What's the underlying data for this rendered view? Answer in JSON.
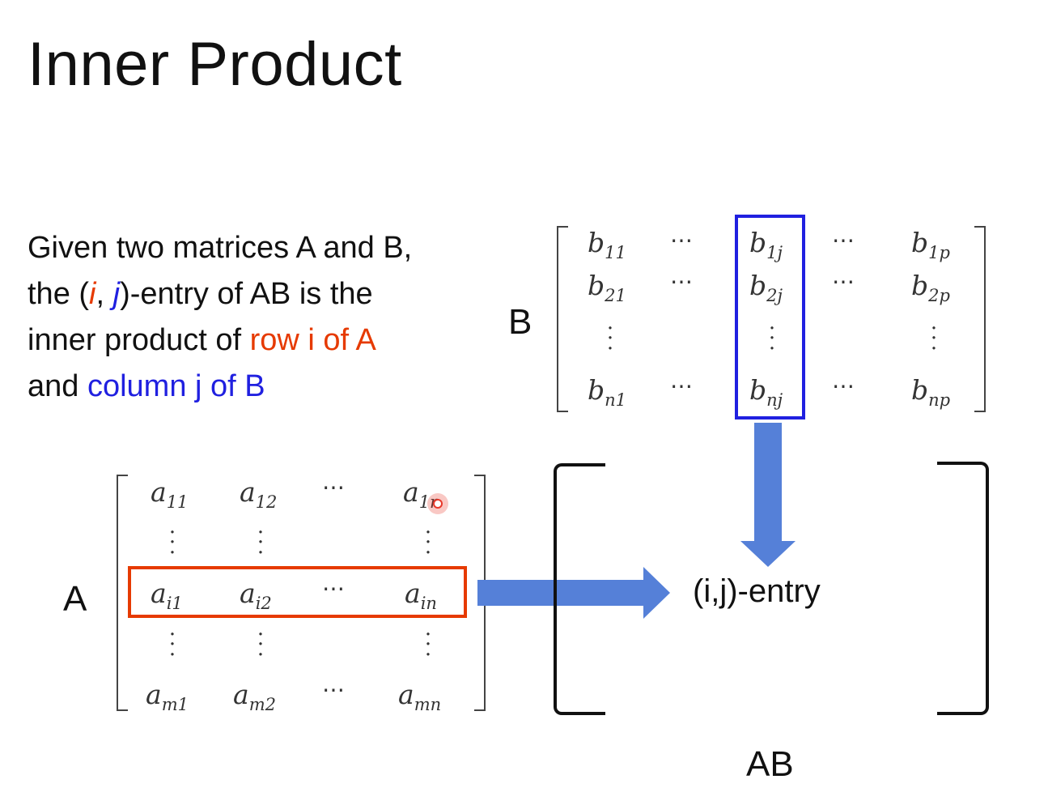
{
  "title": "Inner Product",
  "description": {
    "line1": "Given two matrices A and B,",
    "line2_pre": "the (",
    "line2_i": "i",
    "line2_sep": ", ",
    "line2_j": "j",
    "line2_post": ")-entry of AB is the",
    "line3_pre": "inner product of ",
    "line3_row": "row i of A",
    "line4_pre": "and ",
    "line4_col": "column j of B"
  },
  "matrix_b": {
    "label": "B",
    "rows": [
      {
        "c1": "b",
        "c1s": "11",
        "c3": "b",
        "c3s": "1j",
        "c5": "b",
        "c5s": "1p"
      },
      {
        "c1": "b",
        "c1s": "21",
        "c3": "b",
        "c3s": "2j",
        "c5": "b",
        "c5s": "2p"
      },
      {
        "c1": "b",
        "c1s": "n1",
        "c3": "b",
        "c3s": "nj",
        "c5": "b",
        "c5s": "np"
      }
    ],
    "hdots": "⋯",
    "vdots": "⋮"
  },
  "matrix_a": {
    "label": "A",
    "rows": [
      {
        "c1": "a",
        "c1s": "11",
        "c2": "a",
        "c2s": "12",
        "c4": "a",
        "c4s": "1n"
      },
      {
        "c1": "a",
        "c1s": "i1",
        "c2": "a",
        "c2s": "i2",
        "c4": "a",
        "c4s": "in"
      },
      {
        "c1": "a",
        "c1s": "m1",
        "c2": "a",
        "c2s": "m2",
        "c4": "a",
        "c4s": "mn"
      }
    ]
  },
  "result": {
    "entry": "(i,j)-entry",
    "label": "AB"
  },
  "colors": {
    "row_highlight": "#e63a00",
    "column_highlight": "#2020e0",
    "arrow": "#5580d8",
    "cursor": "#e8382a"
  }
}
